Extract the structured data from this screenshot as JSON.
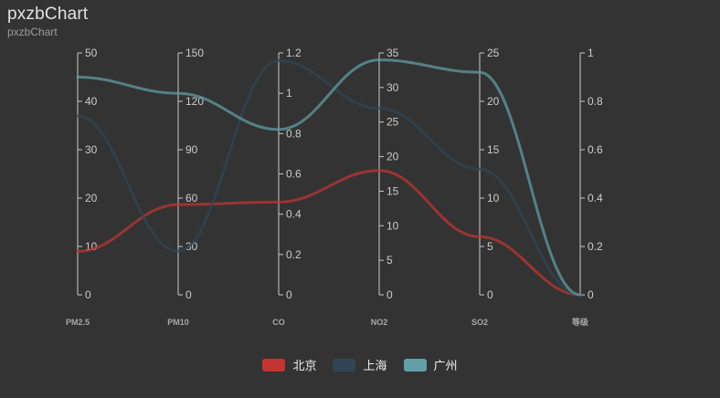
{
  "title": "pxzbChart",
  "subtitle": "pxzbChart",
  "colors": {
    "background": "#333333",
    "axis_line": "#c8c8c8",
    "tick_label": "#cccccc",
    "axis_name": "#a8a8a8",
    "title": "#e2e2e2",
    "subtitle": "#9b9b9b"
  },
  "chart_data": {
    "type": "line",
    "variant": "parallel-coordinates",
    "title": "pxzbChart",
    "subtitle": "pxzbChart",
    "grid": false,
    "legend_position": "bottom",
    "axes": [
      {
        "name": "PM2.5",
        "min": 0,
        "max": 50,
        "ticks": [
          0,
          10,
          20,
          30,
          40,
          50
        ]
      },
      {
        "name": "PM10",
        "min": 0,
        "max": 150,
        "ticks": [
          0,
          30,
          60,
          90,
          120,
          150
        ]
      },
      {
        "name": "CO",
        "min": 0,
        "max": 1.2,
        "ticks": [
          0,
          0.2,
          0.4,
          0.6,
          0.8,
          1,
          1.2
        ]
      },
      {
        "name": "NO2",
        "min": 0,
        "max": 35,
        "ticks": [
          0,
          5,
          10,
          15,
          20,
          25,
          30,
          35
        ]
      },
      {
        "name": "SO2",
        "min": 0,
        "max": 25,
        "ticks": [
          0,
          5,
          10,
          15,
          20,
          25
        ]
      },
      {
        "name": "等级",
        "min": 0,
        "max": 1,
        "ticks": [
          0,
          0.2,
          0.4,
          0.6,
          0.8,
          1
        ]
      }
    ],
    "series": [
      {
        "name": "北京",
        "color": "#c23531",
        "values": [
          9,
          56,
          0.46,
          18,
          6,
          0
        ]
      },
      {
        "name": "上海",
        "color": "#2f4554",
        "values": [
          37,
          27,
          1.163,
          27,
          13,
          0
        ]
      },
      {
        "name": "广州",
        "color": "#61a0a8",
        "values": [
          45,
          125,
          0.82,
          34,
          23,
          0
        ]
      }
    ]
  }
}
